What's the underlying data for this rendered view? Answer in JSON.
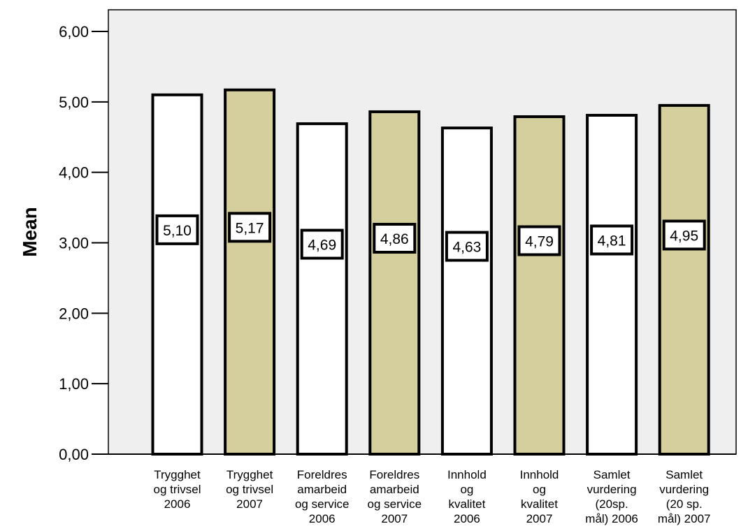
{
  "chart_data": {
    "type": "bar",
    "title": "",
    "xlabel": "",
    "ylabel": "Mean",
    "ylim": [
      0,
      6.2
    ],
    "yticks": [
      "0,00",
      "1,00",
      "2,00",
      "3,00",
      "4,00",
      "5,00",
      "6,00"
    ],
    "ytick_values": [
      0,
      1,
      2,
      3,
      4,
      5,
      6
    ],
    "grid": false,
    "legend": "none",
    "categories": [
      [
        "Trygghet",
        "og trivsel",
        "2006"
      ],
      [
        "Trygghet",
        "og trivsel",
        "2007"
      ],
      [
        "Foreldres",
        "amarbeid",
        "og service",
        "2006"
      ],
      [
        "Foreldres",
        "amarbeid",
        "og service",
        "2007"
      ],
      [
        "Innhold",
        "og",
        "kvalitet",
        "2006"
      ],
      [
        "Innhold",
        "og",
        "kvalitet",
        "2007"
      ],
      [
        "Samlet",
        "vurdering",
        "(20sp.",
        "mål) 2006"
      ],
      [
        "Samlet",
        "vurdering",
        "(20 sp.",
        "mål) 2007"
      ]
    ],
    "values": [
      5.1,
      5.17,
      4.69,
      4.86,
      4.63,
      4.79,
      4.81,
      4.95
    ],
    "value_labels": [
      "5,10",
      "5,17",
      "4,69",
      "4,86",
      "4,63",
      "4,79",
      "4,81",
      "4,95"
    ],
    "bar_colors": [
      "#ffffff",
      "#d4cf9c",
      "#ffffff",
      "#d4cf9c",
      "#ffffff",
      "#d4cf9c",
      "#ffffff",
      "#d4cf9c"
    ],
    "plot_background": "#efefef"
  }
}
